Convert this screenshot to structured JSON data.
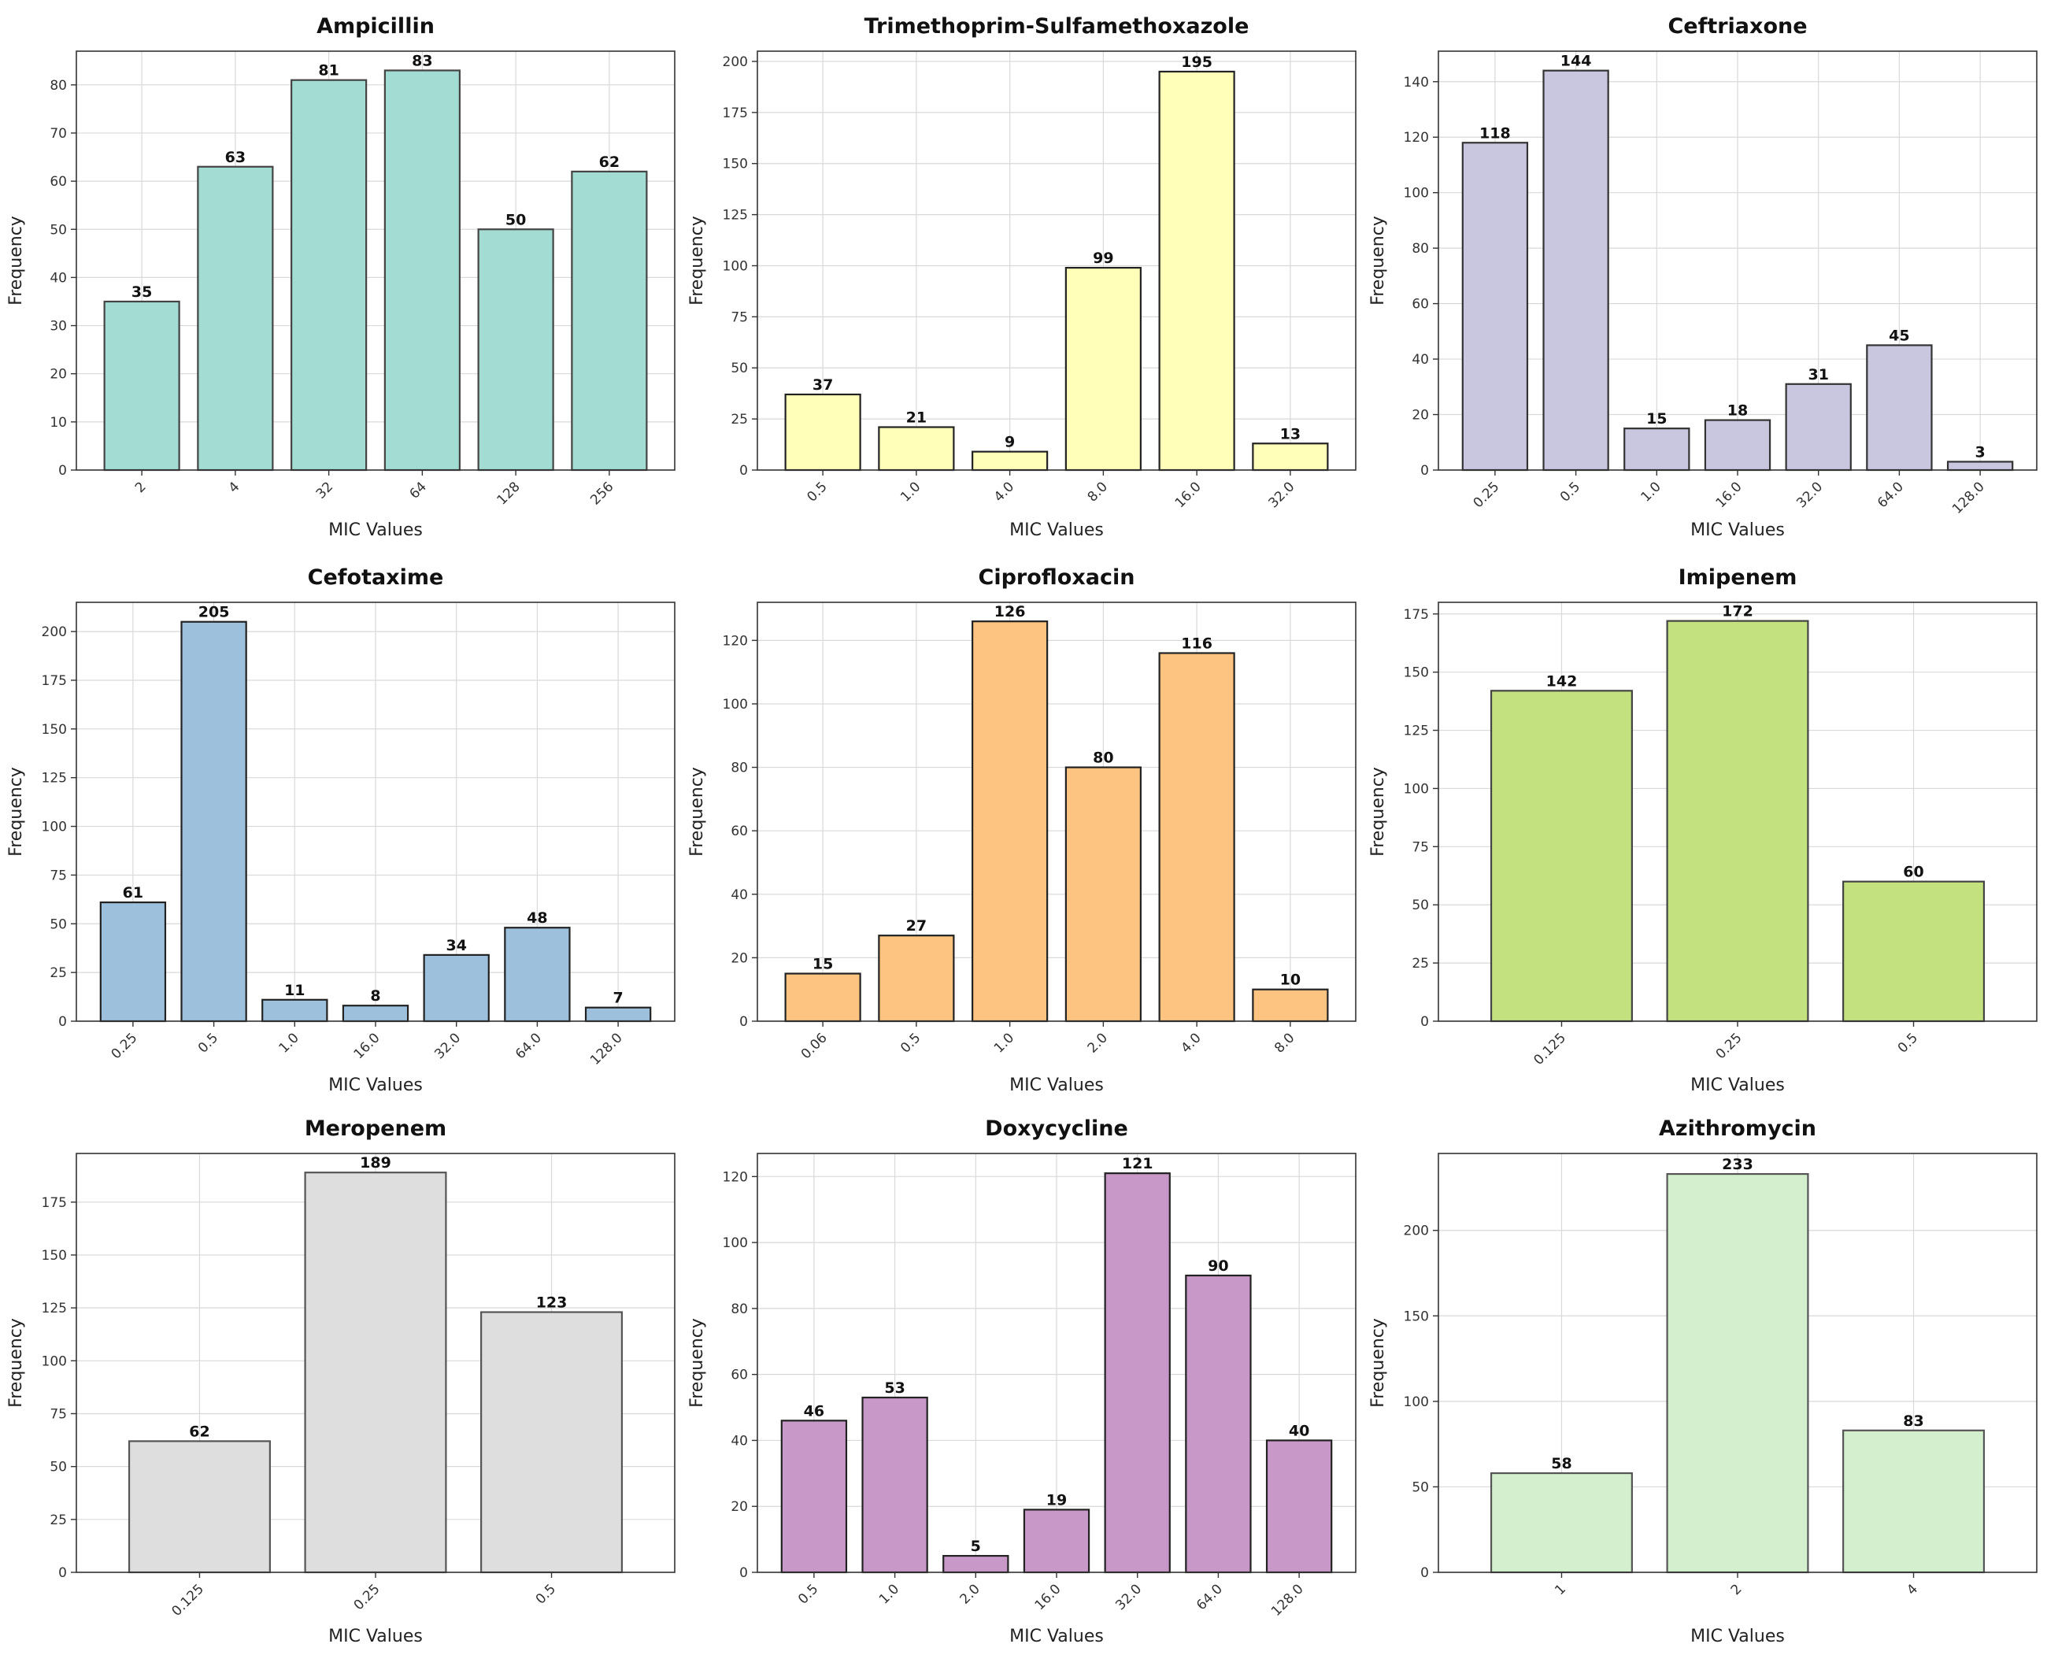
{
  "chart_data": [
    {
      "type": "bar",
      "title": "Ampicillin",
      "xlabel": "MIC Values",
      "ylabel": "Frequency",
      "categories": [
        "2",
        "4",
        "32",
        "64",
        "128",
        "256"
      ],
      "values": [
        35,
        63,
        81,
        83,
        50,
        62
      ],
      "ylim": [
        0,
        87
      ],
      "yticks": [
        0,
        10,
        20,
        30,
        40,
        50,
        60,
        70,
        80
      ],
      "color": "#a3dcd2",
      "edgecolor": "#444444",
      "grid": true
    },
    {
      "type": "bar",
      "title": "Trimethoprim-Sulfamethoxazole",
      "xlabel": "MIC Values",
      "ylabel": "Frequency",
      "categories": [
        "0.5",
        "1.0",
        "4.0",
        "8.0",
        "16.0",
        "32.0"
      ],
      "values": [
        37,
        21,
        9,
        99,
        195,
        13
      ],
      "ylim": [
        0,
        205
      ],
      "yticks": [
        0,
        25,
        50,
        75,
        100,
        125,
        150,
        175,
        200
      ],
      "ytick_labels": [
        "0",
        "25",
        "50",
        "75",
        "100",
        "125",
        "150",
        "175",
        "200"
      ],
      "color": "#ffffba",
      "edgecolor": "#222222",
      "grid": true
    },
    {
      "type": "bar",
      "title": "Ceftriaxone",
      "xlabel": "MIC Values",
      "ylabel": "Frequency",
      "categories": [
        "0.25",
        "0.5",
        "1.0",
        "16.0",
        "32.0",
        "64.0",
        "128.0"
      ],
      "values": [
        118,
        144,
        15,
        18,
        31,
        45,
        3
      ],
      "ylim": [
        0,
        151
      ],
      "yticks": [
        0,
        20,
        40,
        60,
        80,
        100,
        120,
        140
      ],
      "color": "#c9c6e0",
      "edgecolor": "#333333",
      "grid": true
    },
    {
      "type": "bar",
      "title": "Cefotaxime",
      "xlabel": "MIC Values",
      "ylabel": "Frequency",
      "categories": [
        "0.25",
        "0.5",
        "1.0",
        "16.0",
        "32.0",
        "64.0",
        "128.0"
      ],
      "values": [
        61,
        205,
        11,
        8,
        34,
        48,
        7
      ],
      "ylim": [
        0,
        215
      ],
      "yticks": [
        0,
        25,
        50,
        75,
        100,
        125,
        150,
        175,
        200
      ],
      "color": "#9dc1dd",
      "edgecolor": "#222222",
      "grid": true
    },
    {
      "type": "bar",
      "title": "Ciprofloxacin",
      "xlabel": "MIC Values",
      "ylabel": "Frequency",
      "categories": [
        "0.06",
        "0.5",
        "1.0",
        "2.0",
        "4.0",
        "8.0"
      ],
      "values": [
        15,
        27,
        126,
        80,
        116,
        10
      ],
      "ylim": [
        0,
        132
      ],
      "yticks": [
        0,
        20,
        40,
        60,
        80,
        100,
        120
      ],
      "color": "#fcc480",
      "edgecolor": "#222222",
      "grid": true
    },
    {
      "type": "bar",
      "title": "Imipenem",
      "xlabel": "MIC Values",
      "ylabel": "Frequency",
      "categories": [
        "0.125",
        "0.25",
        "0.5"
      ],
      "values": [
        142,
        172,
        60
      ],
      "ylim": [
        0,
        180
      ],
      "yticks": [
        0,
        25,
        50,
        75,
        100,
        125,
        150,
        175
      ],
      "color": "#c4e17f",
      "edgecolor": "#444444",
      "grid": true
    },
    {
      "type": "bar",
      "title": "Meropenem",
      "xlabel": "MIC Values",
      "ylabel": "Frequency",
      "categories": [
        "0.125",
        "0.25",
        "0.5"
      ],
      "values": [
        62,
        189,
        123
      ],
      "ylim": [
        0,
        198
      ],
      "yticks": [
        0,
        25,
        50,
        75,
        100,
        125,
        150,
        175
      ],
      "color": "#dedede",
      "edgecolor": "#555555",
      "grid": true
    },
    {
      "type": "bar",
      "title": "Doxycycline",
      "xlabel": "MIC Values",
      "ylabel": "Frequency",
      "categories": [
        "0.5",
        "1.0",
        "2.0",
        "16.0",
        "32.0",
        "64.0",
        "128.0"
      ],
      "values": [
        46,
        53,
        5,
        19,
        121,
        90,
        40
      ],
      "ylim": [
        0,
        127
      ],
      "yticks": [
        0,
        20,
        40,
        60,
        80,
        100,
        120
      ],
      "color": "#c899c8",
      "edgecolor": "#222222",
      "grid": true
    },
    {
      "type": "bar",
      "title": "Azithromycin",
      "xlabel": "MIC Values",
      "ylabel": "Frequency",
      "categories": [
        "1",
        "2",
        "4"
      ],
      "values": [
        58,
        233,
        83
      ],
      "ylim": [
        0,
        245
      ],
      "yticks": [
        0,
        50,
        100,
        150,
        200
      ],
      "color": "#d4efcd",
      "edgecolor": "#555555",
      "grid": true
    }
  ]
}
